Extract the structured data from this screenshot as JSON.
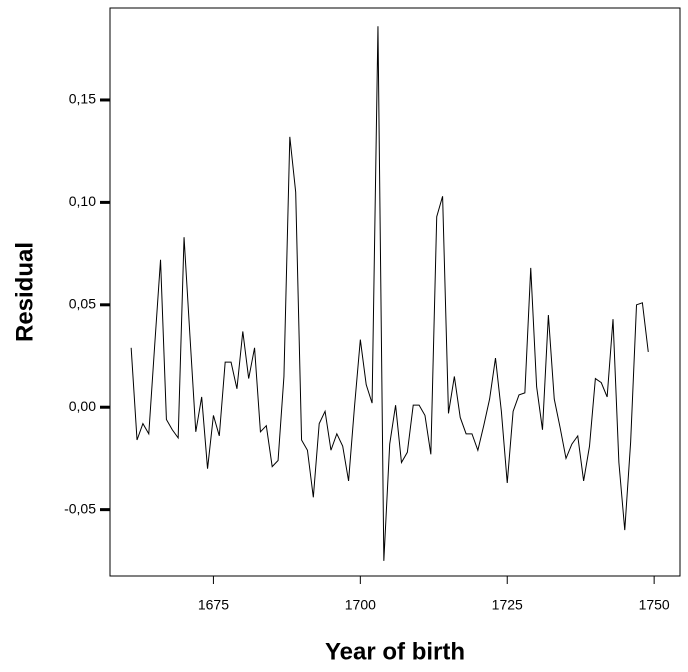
{
  "chart_data": {
    "type": "line",
    "xlabel": "Year of birth",
    "ylabel": "Residual",
    "x": [
      1661,
      1662,
      1663,
      1664,
      1665,
      1666,
      1667,
      1668,
      1669,
      1670,
      1671,
      1672,
      1673,
      1674,
      1675,
      1676,
      1677,
      1678,
      1679,
      1680,
      1681,
      1682,
      1683,
      1684,
      1685,
      1686,
      1687,
      1688,
      1689,
      1690,
      1691,
      1692,
      1693,
      1694,
      1695,
      1696,
      1697,
      1698,
      1699,
      1700,
      1701,
      1702,
      1703,
      1704,
      1705,
      1706,
      1707,
      1708,
      1709,
      1710,
      1711,
      1712,
      1713,
      1714,
      1715,
      1716,
      1717,
      1718,
      1719,
      1720,
      1721,
      1722,
      1723,
      1724,
      1725,
      1726,
      1727,
      1728,
      1729,
      1730,
      1731,
      1732,
      1733,
      1734,
      1735,
      1736,
      1737,
      1738,
      1739,
      1740,
      1741,
      1742,
      1743,
      1744,
      1745,
      1746,
      1747,
      1748,
      1749
    ],
    "series": [
      {
        "color": "#000000",
        "values": [
          0.029,
          -0.016,
          -0.008,
          -0.013,
          0.03,
          0.072,
          -0.006,
          -0.011,
          -0.015,
          0.083,
          0.035,
          -0.012,
          0.005,
          -0.03,
          -0.004,
          -0.014,
          0.022,
          0.022,
          0.009,
          0.037,
          0.014,
          0.029,
          -0.012,
          -0.009,
          -0.029,
          -0.026,
          0.015,
          0.132,
          0.105,
          -0.016,
          -0.021,
          -0.044,
          -0.008,
          -0.002,
          -0.021,
          -0.013,
          -0.019,
          -0.036,
          0.0,
          0.033,
          0.011,
          0.002,
          0.186,
          -0.075,
          -0.018,
          0.001,
          -0.027,
          -0.022,
          0.001,
          0.001,
          -0.004,
          -0.023,
          0.093,
          0.103,
          -0.003,
          0.015,
          -0.005,
          -0.013,
          -0.013,
          -0.021,
          -0.009,
          0.004,
          0.024,
          -0.002,
          -0.037,
          -0.002,
          0.006,
          0.007,
          0.068,
          0.01,
          -0.011,
          0.045,
          0.004,
          -0.01,
          -0.025,
          -0.018,
          -0.014,
          -0.036,
          -0.019,
          0.014,
          0.012,
          0.005,
          0.043,
          -0.027,
          -0.06,
          -0.017,
          0.05,
          0.051,
          0.027
        ]
      }
    ],
    "xlim": [
      1657.4,
      1754.4
    ],
    "xticks": [
      1675,
      1700,
      1725,
      1750
    ],
    "ylim": [
      -0.0824,
      0.1949
    ],
    "yticks": [
      {
        "value": -0.05,
        "label": "-0,05"
      },
      {
        "value": 0,
        "label": "0,00"
      },
      {
        "value": 0.05,
        "label": "0,05"
      },
      {
        "value": 0.1,
        "label": "0,10"
      },
      {
        "value": 0.15,
        "label": "0,15"
      }
    ]
  }
}
